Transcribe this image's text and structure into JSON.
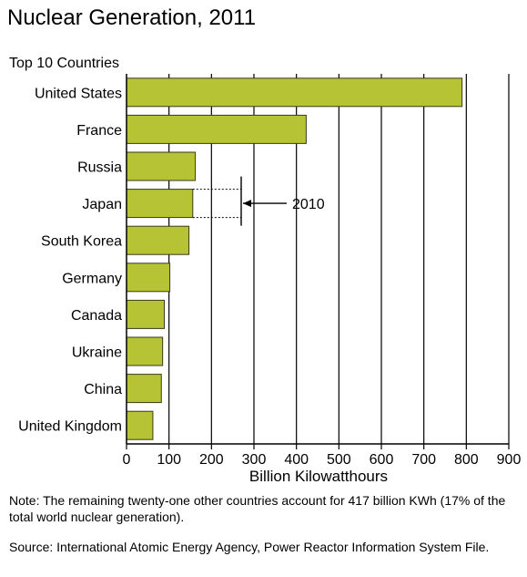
{
  "chart_data": {
    "type": "bar",
    "orientation": "horizontal",
    "title": "Nuclear Generation, 2011",
    "subtitle": "Top 10 Countries",
    "xlabel": "Billion Kilowatthours",
    "xlim": [
      0,
      900
    ],
    "xticks": [
      0,
      100,
      200,
      300,
      400,
      500,
      600,
      700,
      800,
      900
    ],
    "grid": "vertical",
    "bar_color": "#b5c334",
    "categories": [
      "United States",
      "France",
      "Russia",
      "Japan",
      "South Korea",
      "Germany",
      "Canada",
      "Ukraine",
      "China",
      "United Kingdom"
    ],
    "values": [
      790,
      423,
      162,
      156,
      147,
      102,
      89,
      85,
      82,
      62
    ],
    "annotation": {
      "label": "2010",
      "category": "Japan",
      "value": 270
    }
  },
  "notes": {
    "note": "Note: The remaining twenty-one other countries account for 417 billion KWh (17% of the total world nuclear generation).",
    "source": "Source: International Atomic Energy Agency, Power Reactor Information System File."
  }
}
